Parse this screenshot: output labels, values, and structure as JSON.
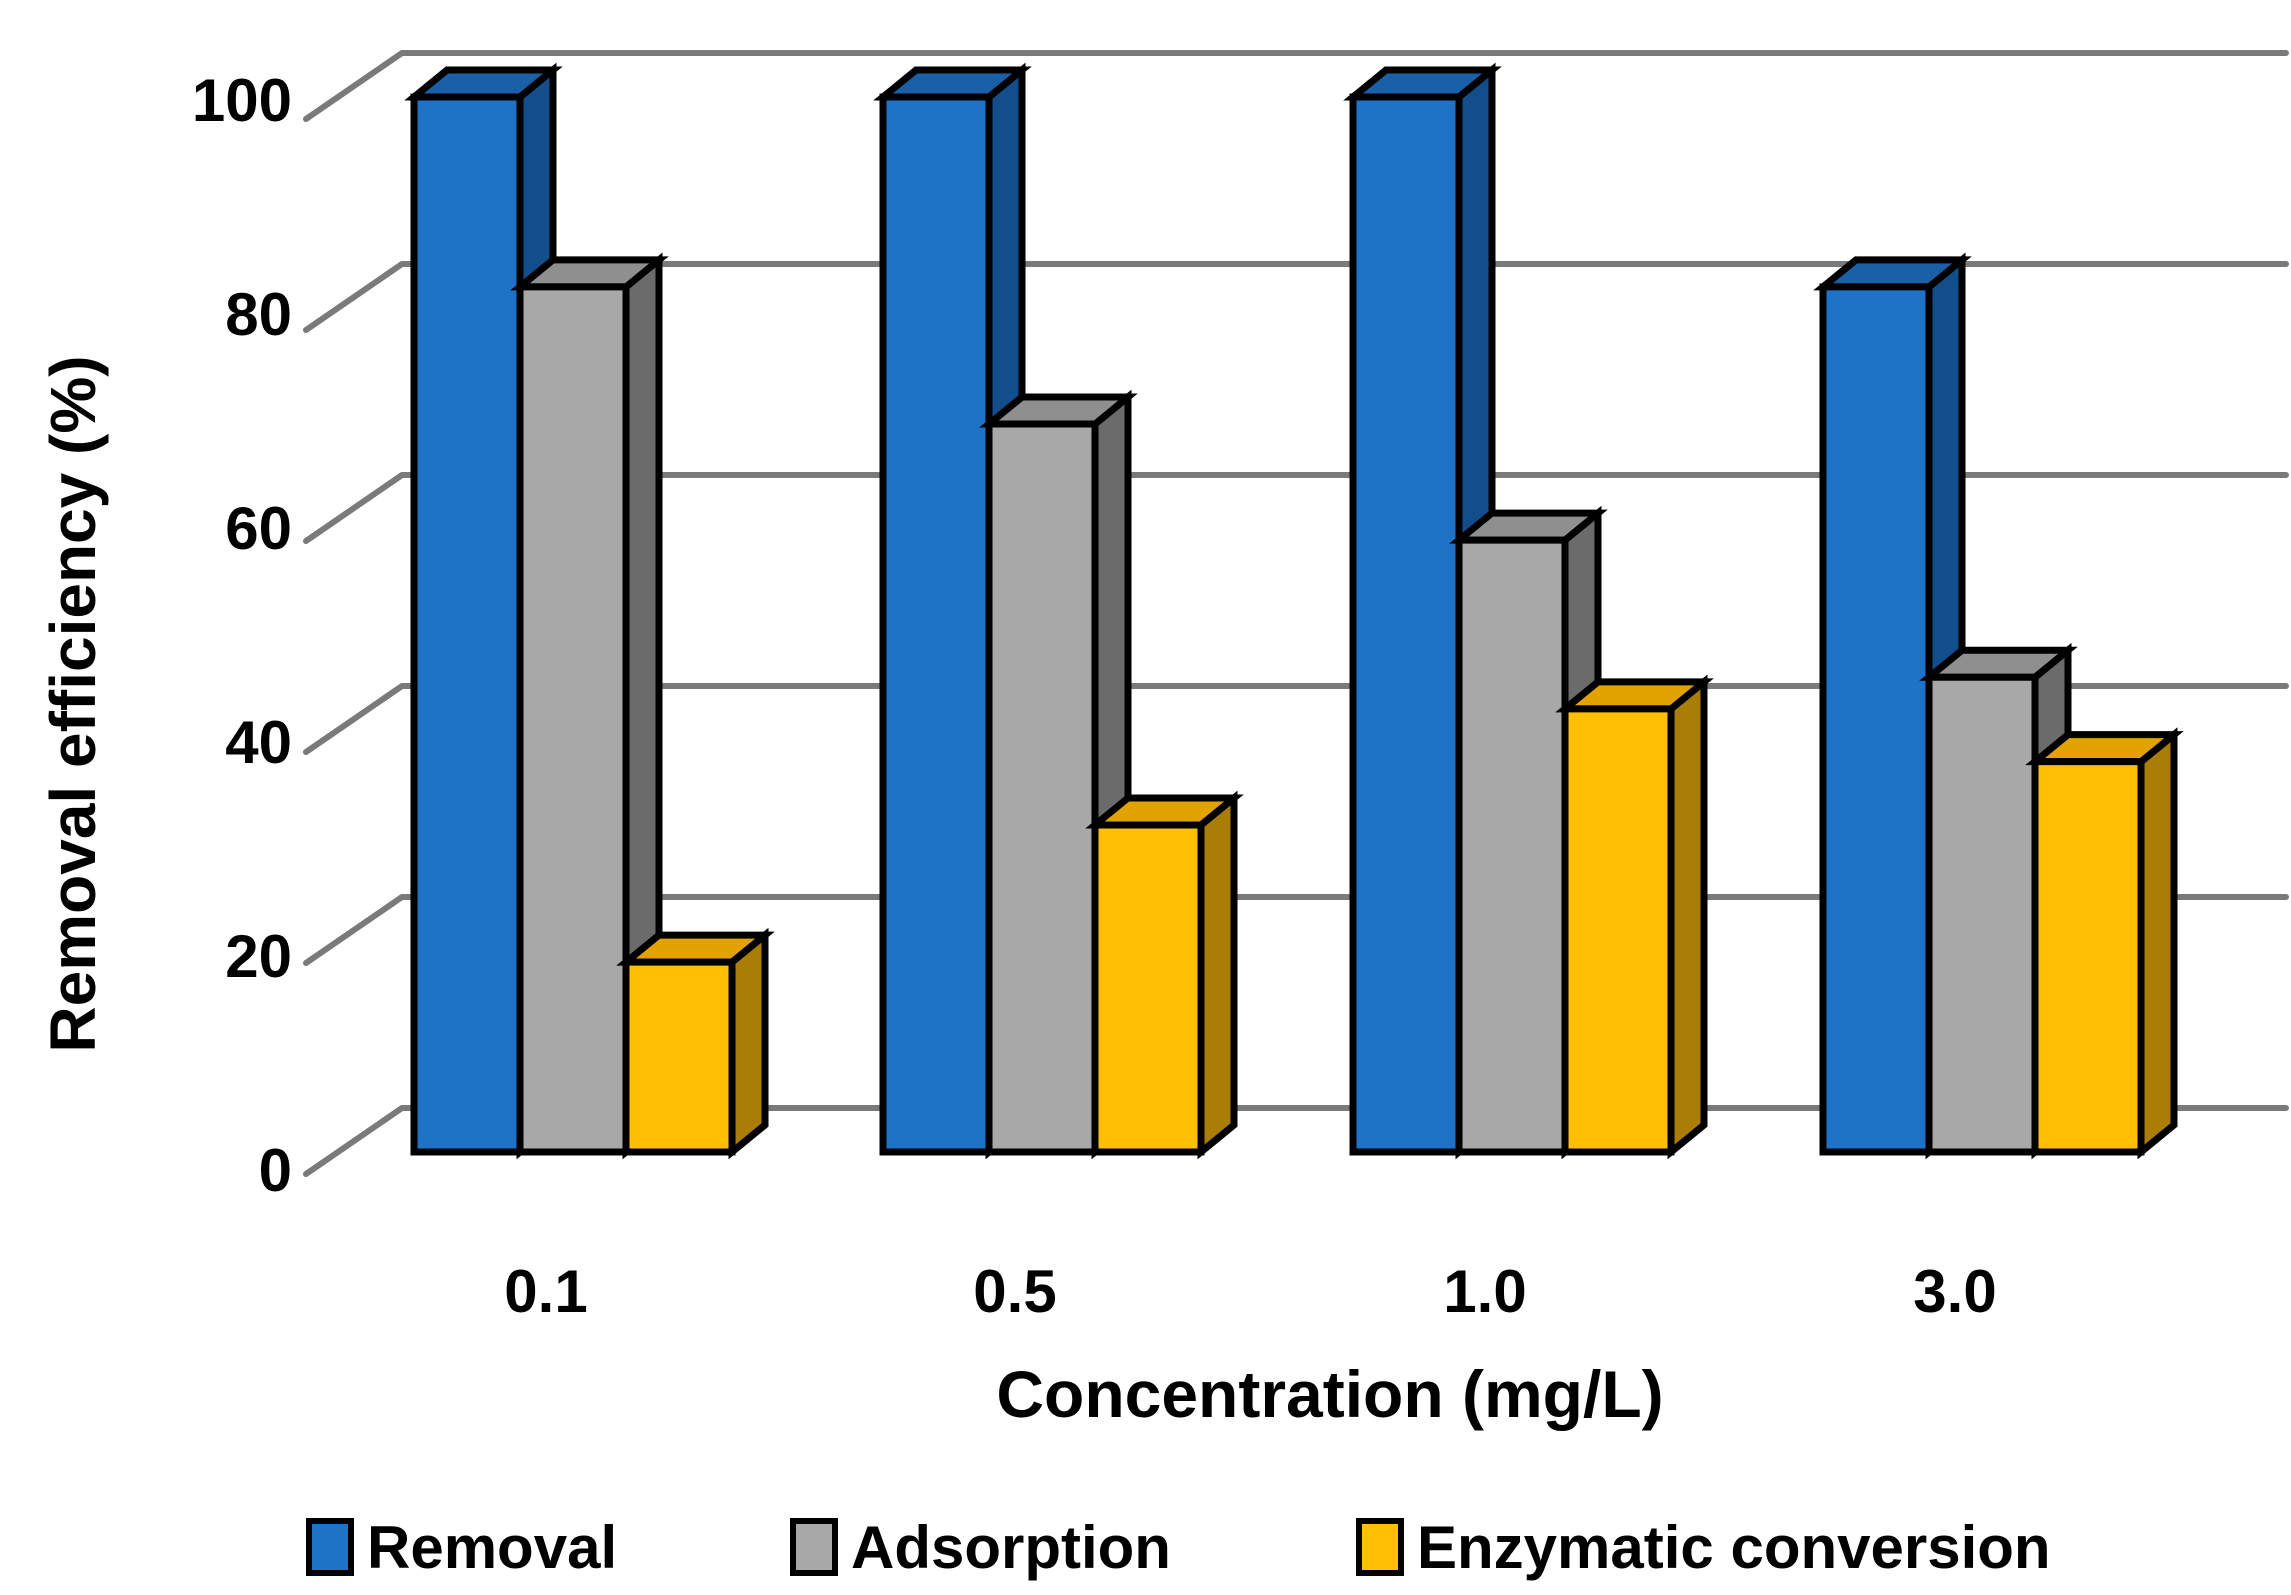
{
  "chart_data": {
    "type": "bar",
    "style": "3d-clustered-column",
    "title": "",
    "xlabel": "Concentration (mg/L)",
    "ylabel": "Removal efficiency (%)",
    "categories": [
      "0.1",
      "0.5",
      "1.0",
      "3.0"
    ],
    "series": [
      {
        "name": "Removal",
        "values": [
          100,
          100,
          100,
          82
        ],
        "color": "#1E73C8",
        "color_side": "#134E8C",
        "color_top": "#1A60A8"
      },
      {
        "name": "Adsorption",
        "values": [
          82,
          69,
          58,
          45
        ],
        "color": "#A8A8A8",
        "color_side": "#6B6B6B",
        "color_top": "#8F8F8F"
      },
      {
        "name": "Enzymatic conversion",
        "values": [
          18,
          31,
          42,
          37
        ],
        "color": "#FFC003",
        "color_side": "#AA7D07",
        "color_top": "#E2A300"
      }
    ],
    "yticks": [
      0,
      20,
      40,
      60,
      80,
      100
    ],
    "ylim": [
      0,
      100
    ],
    "grid": true,
    "gridline_color": "#7A7A7A",
    "outline_color": "#000000",
    "text_color": "#000000",
    "background_color": "#FFFFFF",
    "legend_position": "bottom"
  }
}
